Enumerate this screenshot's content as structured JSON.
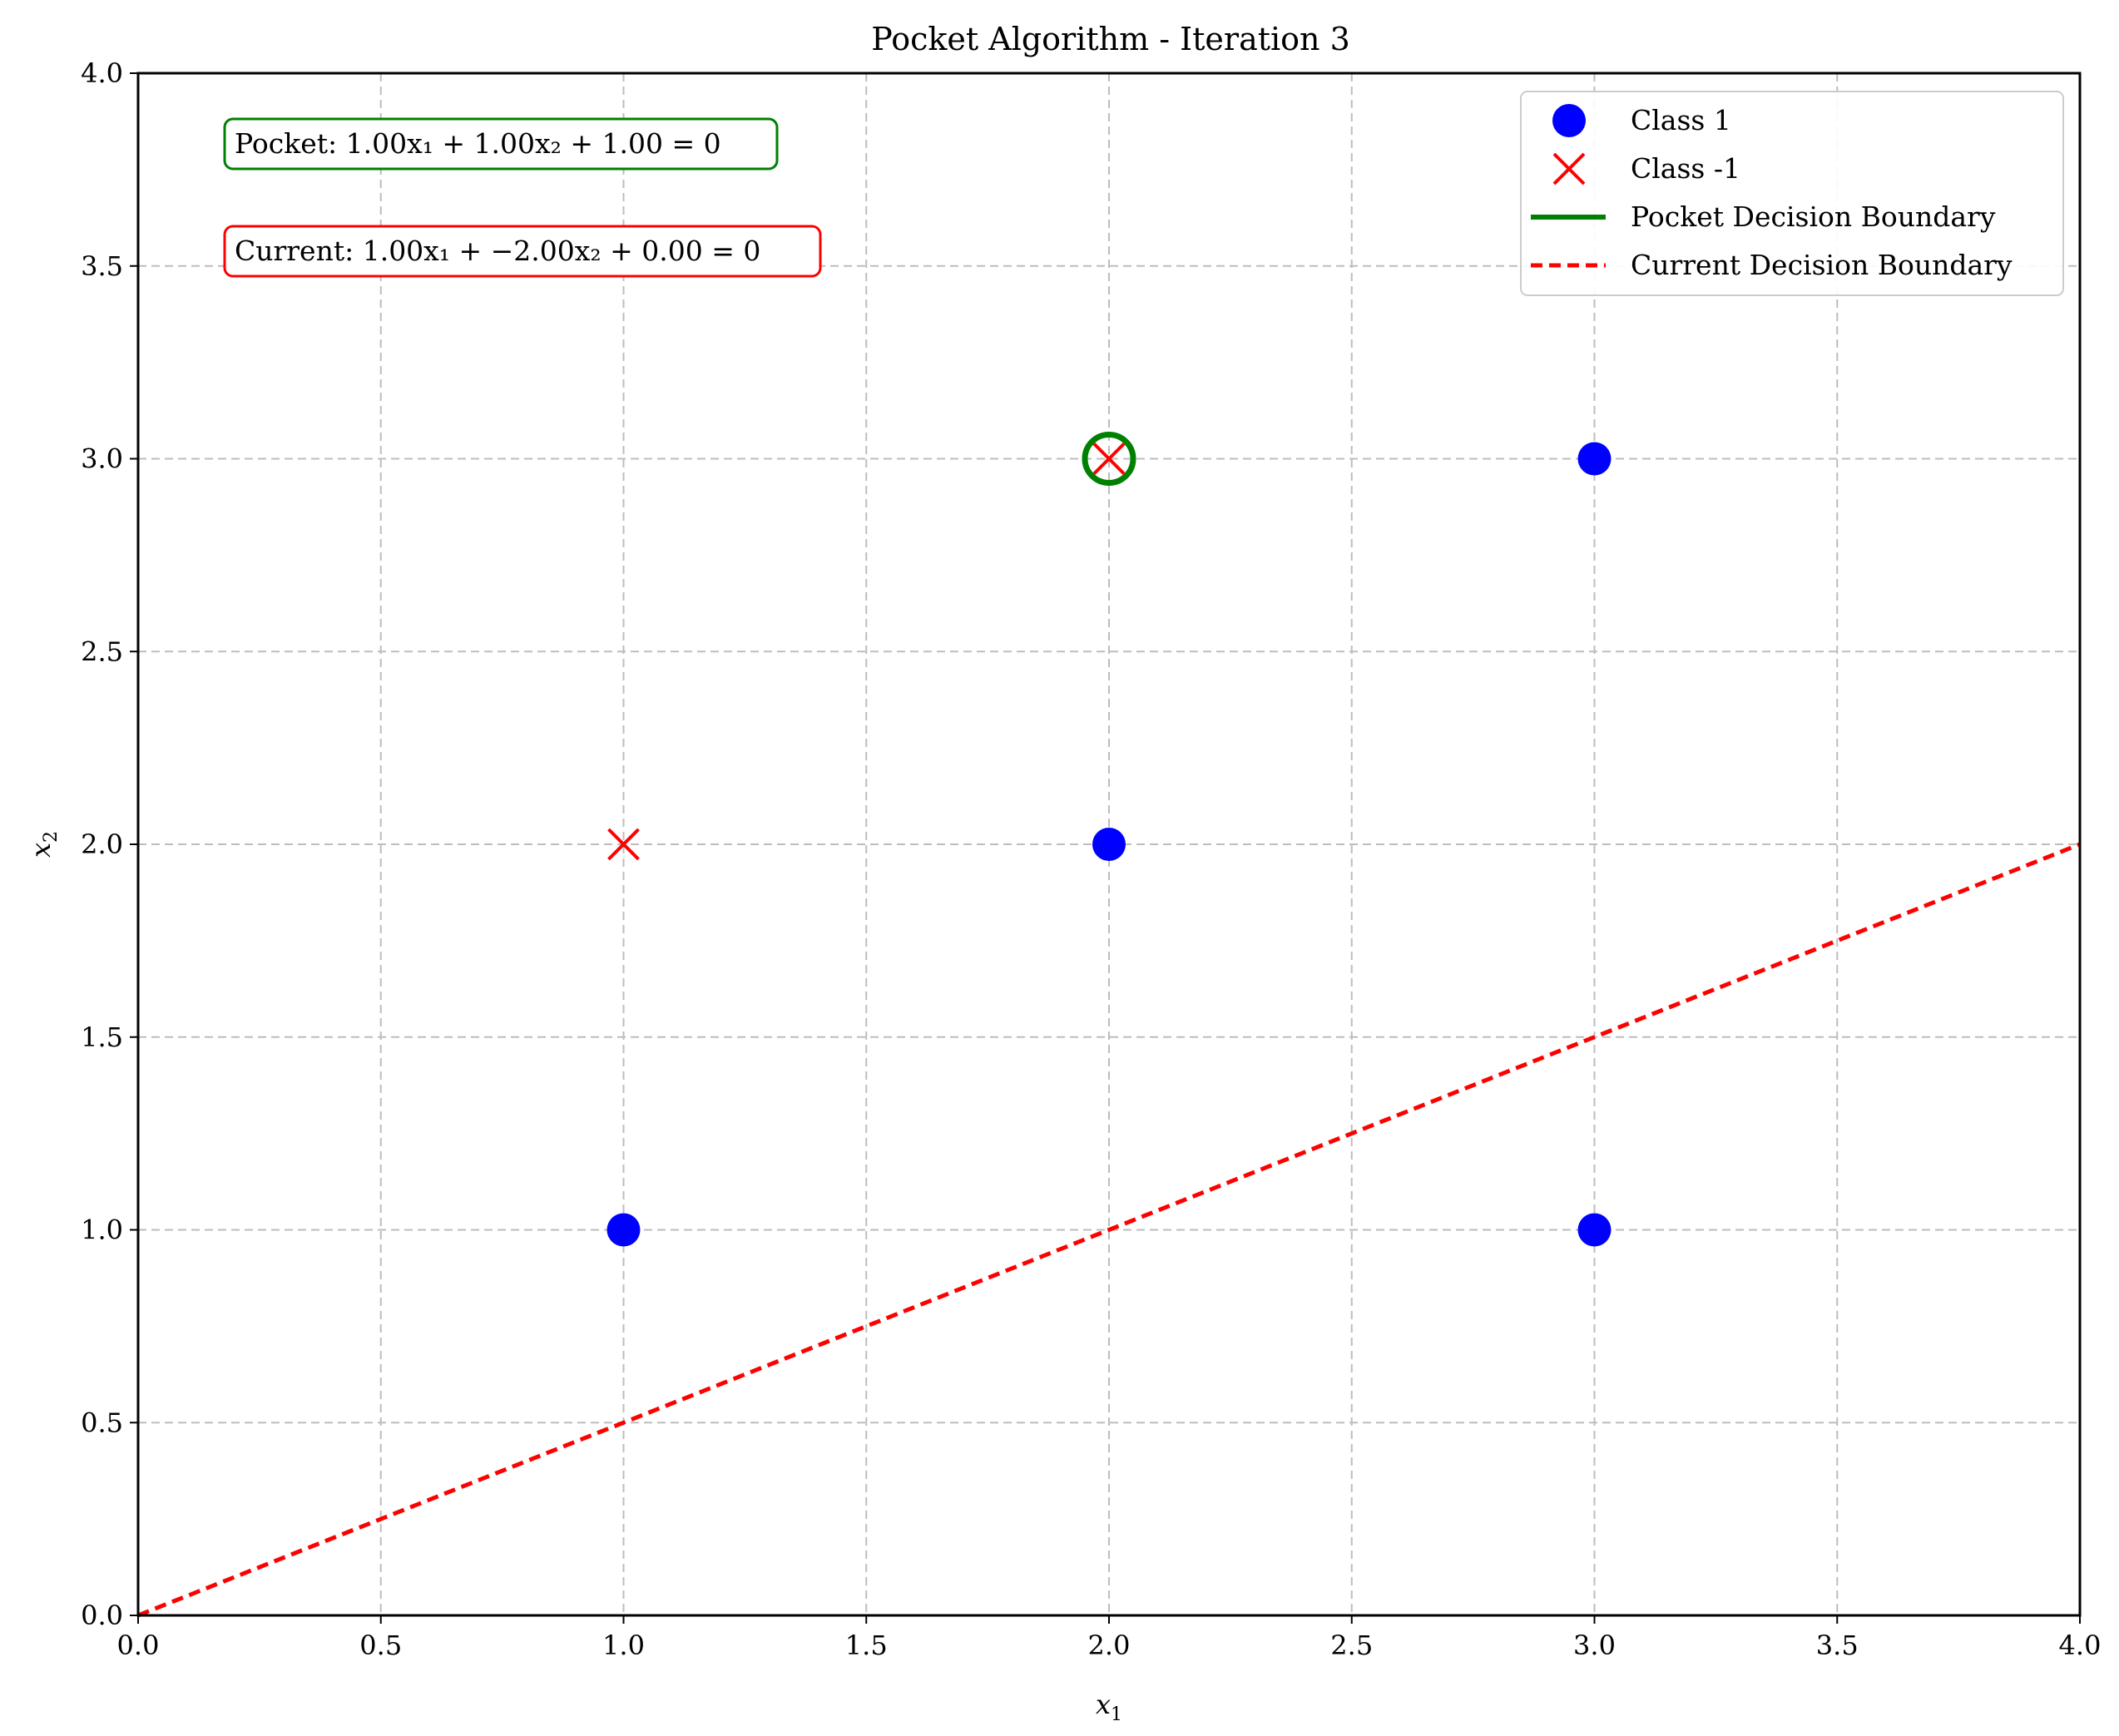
{
  "chart_data": {
    "type": "scatter",
    "title": "Pocket Algorithm - Iteration 3",
    "xlabel": "x",
    "xlabel_sub": "1",
    "ylabel": "x",
    "ylabel_sub": "2",
    "xlim": [
      0,
      4
    ],
    "ylim": [
      0,
      4
    ],
    "xticks": [
      "0.0",
      "0.5",
      "1.0",
      "1.5",
      "2.0",
      "2.5",
      "3.0",
      "3.5",
      "4.0"
    ],
    "yticks": [
      "0.0",
      "0.5",
      "1.0",
      "1.5",
      "2.0",
      "2.5",
      "3.0",
      "3.5",
      "4.0"
    ],
    "grid": true,
    "legend_position": "top-right",
    "series": [
      {
        "name": "Class 1",
        "marker": "circle",
        "color": "#0000ff",
        "points": [
          [
            1,
            1
          ],
          [
            2,
            2
          ],
          [
            3,
            3
          ],
          [
            3,
            1
          ]
        ]
      },
      {
        "name": "Class -1",
        "marker": "x",
        "color": "#ff0000",
        "points": [
          [
            1,
            2
          ],
          [
            2,
            3
          ]
        ]
      }
    ],
    "lines": [
      {
        "name": "Pocket Decision Boundary",
        "style": "solid",
        "color": "#008000",
        "points": []
      },
      {
        "name": "Current Decision Boundary",
        "style": "dashed",
        "color": "#ff0000",
        "points": [
          [
            0,
            0
          ],
          [
            4,
            2
          ]
        ]
      }
    ],
    "highlight": {
      "point": [
        2,
        3
      ],
      "color": "#008000",
      "shape": "ring"
    },
    "annotations": [
      {
        "id": "pocket",
        "text": "Pocket: 1.00x₁ + 1.00x₂ + 1.00 = 0",
        "border": "#008000"
      },
      {
        "id": "current",
        "text": "Current: 1.00x₁ + −2.00x₂ + 0.00 = 0",
        "border": "#ff0000"
      }
    ]
  }
}
